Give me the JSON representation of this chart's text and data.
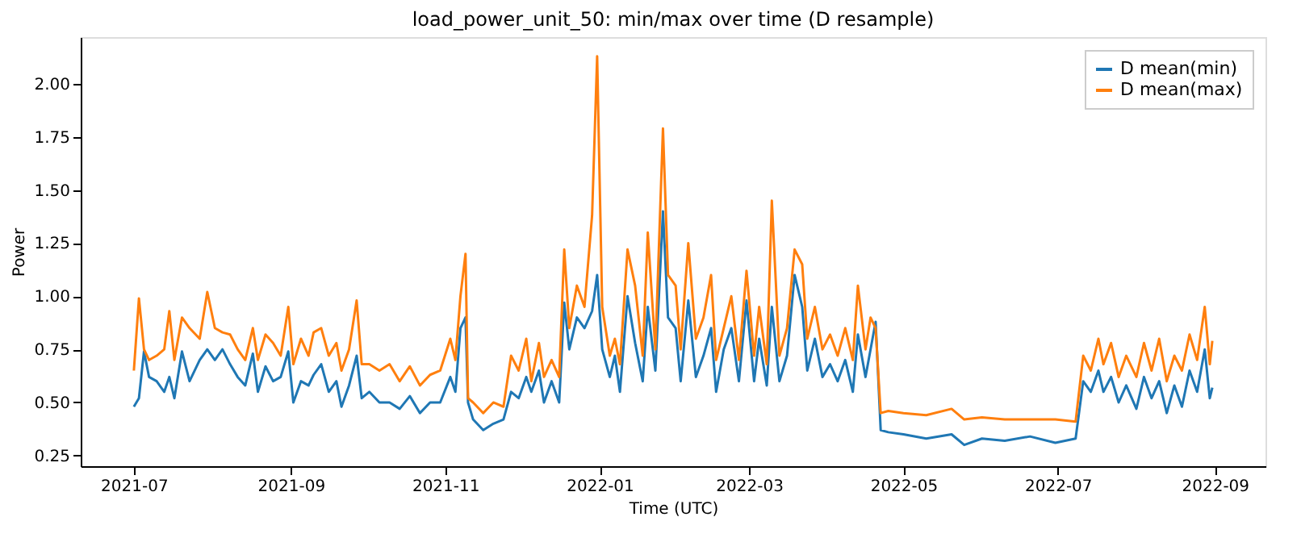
{
  "chart_data": {
    "type": "line",
    "title": "load_power_unit_50: min/max over time (D resample)",
    "xlabel": "Time (UTC)",
    "ylabel": "Power",
    "x": [
      "2021-07-01",
      "2021-07-03",
      "2021-07-05",
      "2021-07-07",
      "2021-07-10",
      "2021-07-13",
      "2021-07-15",
      "2021-07-17",
      "2021-07-20",
      "2021-07-23",
      "2021-07-27",
      "2021-07-30",
      "2021-08-02",
      "2021-08-05",
      "2021-08-08",
      "2021-08-11",
      "2021-08-14",
      "2021-08-17",
      "2021-08-19",
      "2021-08-22",
      "2021-08-25",
      "2021-08-28",
      "2021-08-31",
      "2021-09-02",
      "2021-09-05",
      "2021-09-08",
      "2021-09-10",
      "2021-09-13",
      "2021-09-16",
      "2021-09-19",
      "2021-09-21",
      "2021-09-24",
      "2021-09-27",
      "2021-09-29",
      "2021-10-02",
      "2021-10-06",
      "2021-10-10",
      "2021-10-14",
      "2021-10-18",
      "2021-10-22",
      "2021-10-26",
      "2021-10-30",
      "2021-11-03",
      "2021-11-05",
      "2021-11-07",
      "2021-11-09",
      "2021-11-10",
      "2021-11-12",
      "2021-11-16",
      "2021-11-20",
      "2021-11-24",
      "2021-11-27",
      "2021-11-30",
      "2021-12-03",
      "2021-12-05",
      "2021-12-08",
      "2021-12-10",
      "2021-12-13",
      "2021-12-16",
      "2021-12-18",
      "2021-12-20",
      "2021-12-23",
      "2021-12-26",
      "2021-12-29",
      "2021-12-31",
      "2022-01-02",
      "2022-01-05",
      "2022-01-07",
      "2022-01-09",
      "2022-01-12",
      "2022-01-15",
      "2022-01-18",
      "2022-01-20",
      "2022-01-23",
      "2022-01-26",
      "2022-01-28",
      "2022-01-31",
      "2022-02-02",
      "2022-02-05",
      "2022-02-08",
      "2022-02-11",
      "2022-02-14",
      "2022-02-16",
      "2022-02-19",
      "2022-02-22",
      "2022-02-25",
      "2022-02-28",
      "2022-03-03",
      "2022-03-05",
      "2022-03-08",
      "2022-03-10",
      "2022-03-13",
      "2022-03-16",
      "2022-03-19",
      "2022-03-22",
      "2022-03-24",
      "2022-03-27",
      "2022-03-30",
      "2022-04-02",
      "2022-04-05",
      "2022-04-08",
      "2022-04-11",
      "2022-04-13",
      "2022-04-16",
      "2022-04-18",
      "2022-04-20",
      "2022-04-22",
      "2022-04-25",
      "2022-05-01",
      "2022-05-10",
      "2022-05-20",
      "2022-05-25",
      "2022-06-01",
      "2022-06-10",
      "2022-06-20",
      "2022-06-30",
      "2022-07-08",
      "2022-07-11",
      "2022-07-14",
      "2022-07-17",
      "2022-07-19",
      "2022-07-22",
      "2022-07-25",
      "2022-07-28",
      "2022-08-01",
      "2022-08-04",
      "2022-08-07",
      "2022-08-10",
      "2022-08-13",
      "2022-08-16",
      "2022-08-19",
      "2022-08-22",
      "2022-08-25",
      "2022-08-28",
      "2022-08-30",
      "2022-08-31"
    ],
    "series": [
      {
        "name": "D mean(min)",
        "color": "#1f77b4",
        "values": [
          0.48,
          0.52,
          0.74,
          0.62,
          0.6,
          0.55,
          0.62,
          0.52,
          0.74,
          0.6,
          0.7,
          0.75,
          0.7,
          0.75,
          0.68,
          0.62,
          0.58,
          0.73,
          0.55,
          0.67,
          0.6,
          0.62,
          0.74,
          0.5,
          0.6,
          0.58,
          0.63,
          0.68,
          0.55,
          0.6,
          0.48,
          0.58,
          0.72,
          0.52,
          0.55,
          0.5,
          0.5,
          0.47,
          0.53,
          0.45,
          0.5,
          0.5,
          0.62,
          0.55,
          0.85,
          0.9,
          0.5,
          0.42,
          0.37,
          0.4,
          0.42,
          0.55,
          0.52,
          0.62,
          0.55,
          0.65,
          0.5,
          0.6,
          0.5,
          0.97,
          0.75,
          0.9,
          0.85,
          0.93,
          1.1,
          0.75,
          0.62,
          0.72,
          0.55,
          1.0,
          0.78,
          0.6,
          0.95,
          0.65,
          1.4,
          0.9,
          0.85,
          0.6,
          0.98,
          0.62,
          0.72,
          0.85,
          0.55,
          0.75,
          0.85,
          0.6,
          0.98,
          0.6,
          0.8,
          0.58,
          0.95,
          0.6,
          0.72,
          1.1,
          0.95,
          0.65,
          0.8,
          0.62,
          0.68,
          0.6,
          0.7,
          0.55,
          0.82,
          0.62,
          0.75,
          0.88,
          0.37,
          0.36,
          0.35,
          0.33,
          0.35,
          0.3,
          0.33,
          0.32,
          0.34,
          0.31,
          0.33,
          0.6,
          0.55,
          0.65,
          0.55,
          0.62,
          0.5,
          0.58,
          0.47,
          0.62,
          0.52,
          0.6,
          0.45,
          0.58,
          0.48,
          0.65,
          0.55,
          0.75,
          0.52,
          0.57
        ]
      },
      {
        "name": "D mean(max)",
        "color": "#ff7f0e",
        "values": [
          0.65,
          0.99,
          0.75,
          0.7,
          0.72,
          0.75,
          0.93,
          0.7,
          0.9,
          0.85,
          0.8,
          1.02,
          0.85,
          0.83,
          0.82,
          0.75,
          0.7,
          0.85,
          0.7,
          0.82,
          0.78,
          0.72,
          0.95,
          0.68,
          0.8,
          0.72,
          0.83,
          0.85,
          0.72,
          0.78,
          0.65,
          0.75,
          0.98,
          0.68,
          0.68,
          0.65,
          0.68,
          0.6,
          0.67,
          0.58,
          0.63,
          0.65,
          0.8,
          0.7,
          1.0,
          1.2,
          0.52,
          0.5,
          0.45,
          0.5,
          0.48,
          0.72,
          0.65,
          0.8,
          0.6,
          0.78,
          0.62,
          0.7,
          0.62,
          1.22,
          0.85,
          1.05,
          0.95,
          1.38,
          2.13,
          0.95,
          0.72,
          0.8,
          0.68,
          1.22,
          1.05,
          0.72,
          1.3,
          0.75,
          1.79,
          1.1,
          1.05,
          0.75,
          1.25,
          0.8,
          0.9,
          1.1,
          0.7,
          0.85,
          1.0,
          0.7,
          1.12,
          0.72,
          0.95,
          0.68,
          1.45,
          0.72,
          0.85,
          1.22,
          1.15,
          0.8,
          0.95,
          0.75,
          0.82,
          0.72,
          0.85,
          0.7,
          1.05,
          0.75,
          0.9,
          0.85,
          0.45,
          0.46,
          0.45,
          0.44,
          0.47,
          0.42,
          0.43,
          0.42,
          0.42,
          0.42,
          0.41,
          0.72,
          0.65,
          0.8,
          0.68,
          0.78,
          0.62,
          0.72,
          0.62,
          0.78,
          0.65,
          0.8,
          0.6,
          0.72,
          0.65,
          0.82,
          0.7,
          0.95,
          0.68,
          0.79
        ]
      }
    ],
    "xlim": [
      "2021-06-10",
      "2022-09-21"
    ],
    "xticks": [
      "2021-07",
      "2021-09",
      "2021-11",
      "2022-01",
      "2022-03",
      "2022-05",
      "2022-07",
      "2022-09"
    ],
    "ylim": [
      0.2,
      2.22
    ],
    "yticks": [
      {
        "value": 0.25,
        "label": "0.25"
      },
      {
        "value": 0.5,
        "label": "0.50"
      },
      {
        "value": 0.75,
        "label": "0.75"
      },
      {
        "value": 1.0,
        "label": "1.00"
      },
      {
        "value": 1.25,
        "label": "1.25"
      },
      {
        "value": 1.5,
        "label": "1.50"
      },
      {
        "value": 1.75,
        "label": "1.75"
      },
      {
        "value": 2.0,
        "label": "2.00"
      }
    ],
    "grid": false,
    "legend": "top right",
    "marker": "none",
    "line_style": "solid"
  }
}
